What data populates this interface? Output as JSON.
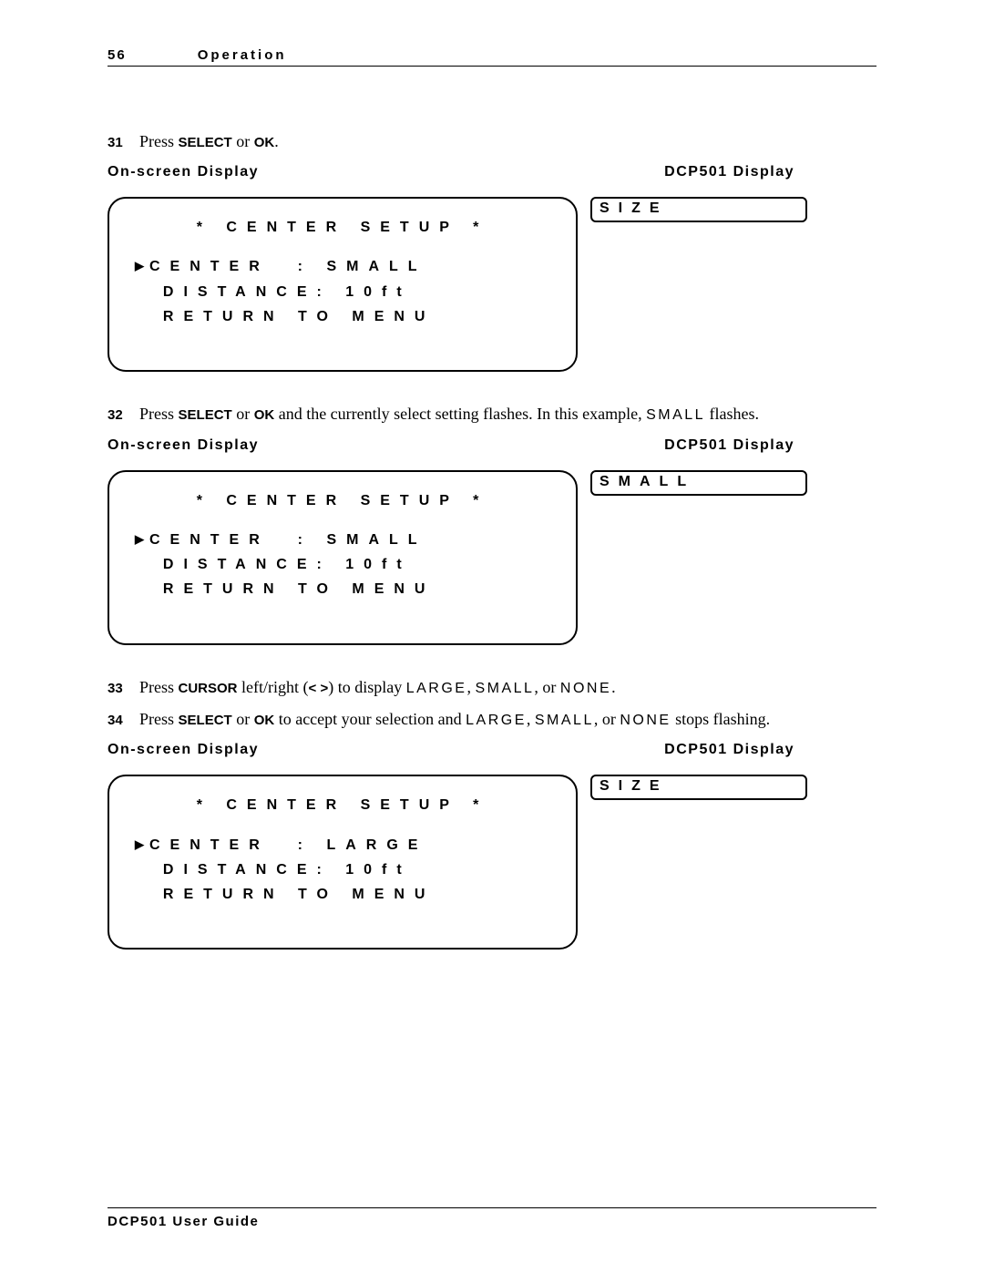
{
  "header": {
    "page_number": "56",
    "section": "Operation"
  },
  "steps": [
    {
      "num": "31",
      "prefix": "Press ",
      "bold1": "SELECT",
      "mid1": " or ",
      "bold2": "OK",
      "suffix": "."
    },
    {
      "num": "32",
      "prefix": "Press ",
      "bold1": "SELECT",
      "mid1": " or ",
      "bold2": "OK",
      "mid2": " and the currently select setting flashes. In this example, ",
      "spaced1": "SMALL",
      "suffix": " flashes."
    },
    {
      "num": "33",
      "prefix": "Press ",
      "bold1": "CURSOR",
      "mid1": " left/right (",
      "bold2": "< >",
      "mid2": ") to display ",
      "spaced1": "LARGE",
      "mid3": ", ",
      "spaced2": "SMALL",
      "mid4": ", or ",
      "spaced3": "NONE",
      "suffix": "."
    },
    {
      "num": "34",
      "prefix": "Press ",
      "bold1": "SELECT",
      "mid1": " or ",
      "bold2": "OK",
      "mid2": " to accept your selection and ",
      "spaced1": "LARGE",
      "mid3": ", ",
      "spaced2": "SMALL",
      "mid4": ", or ",
      "spaced3": "NONE",
      "suffix": " stops flashing."
    }
  ],
  "labels": {
    "osd": "On-screen Display",
    "dcp": "DCP501 Display"
  },
  "displays": [
    {
      "osd_title": "*  CENTER  SETUP  *",
      "osd_line1_cursor": "▶",
      "osd_line1": "CENTER  : SMALL",
      "osd_line2": "  DISTANCE: 10ft",
      "osd_line3": "  RETURN TO MENU",
      "dcp": "SIZE"
    },
    {
      "osd_title": "*  CENTER  SETUP  *",
      "osd_line1_cursor": "▶",
      "osd_line1": "CENTER  : SMALL",
      "osd_line2": "  DISTANCE: 10ft",
      "osd_line3": "  RETURN TO MENU",
      "dcp": "SMALL"
    },
    {
      "osd_title": "*  CENTER  SETUP  *",
      "osd_line1_cursor": "▶",
      "osd_line1": "CENTER  : LARGE",
      "osd_line2": "  DISTANCE: 10ft",
      "osd_line3": "  RETURN TO MENU",
      "dcp": "SIZE"
    }
  ],
  "footer": "DCP501 User Guide"
}
